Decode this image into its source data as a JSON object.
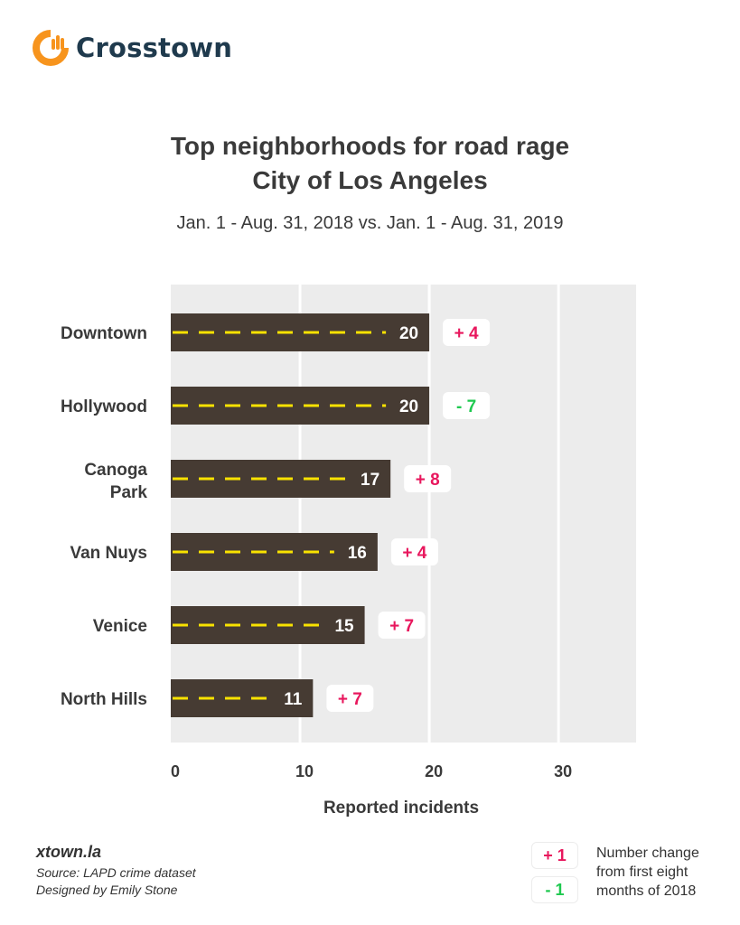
{
  "brand": {
    "name": "Crosstown",
    "accent": "#f7941d",
    "text_color": "#1f3a4d"
  },
  "title_line1": "Top neighborhoods for road rage",
  "title_line2": "City of Los Angeles",
  "subtitle": "Jan. 1 - Aug. 31, 2018 vs. Jan. 1 - Aug. 31, 2019",
  "chart_data": {
    "type": "bar",
    "orientation": "horizontal",
    "categories": [
      [
        "Downtown"
      ],
      [
        "Hollywood"
      ],
      [
        "Canoga",
        "Park"
      ],
      [
        "Van Nuys"
      ],
      [
        "Venice"
      ],
      [
        "North Hills"
      ]
    ],
    "values": [
      20,
      20,
      17,
      16,
      15,
      11
    ],
    "changes": [
      "+ 4",
      "- 7",
      "+ 8",
      "+ 4",
      "+ 7",
      "+ 7"
    ],
    "change_signs": [
      "pos",
      "neg",
      "pos",
      "pos",
      "pos",
      "pos"
    ],
    "xlabel": "Reported incidents",
    "xlim": [
      0,
      36
    ],
    "xticks": [
      0,
      10,
      20,
      30
    ],
    "grid": true,
    "colors": {
      "bar": "#463b33",
      "dash": "#f8e200",
      "plot_bg": "#ececec",
      "positive": "#e8175d",
      "negative": "#1ec94f"
    }
  },
  "footer": {
    "site": "xtown.la",
    "source": "Source: LAPD crime dataset",
    "designer": "Designed by Emily Stone"
  },
  "legend": {
    "positive_sample": "+ 1",
    "negative_sample": "- 1",
    "text": "Number change from first eight months of 2018"
  }
}
